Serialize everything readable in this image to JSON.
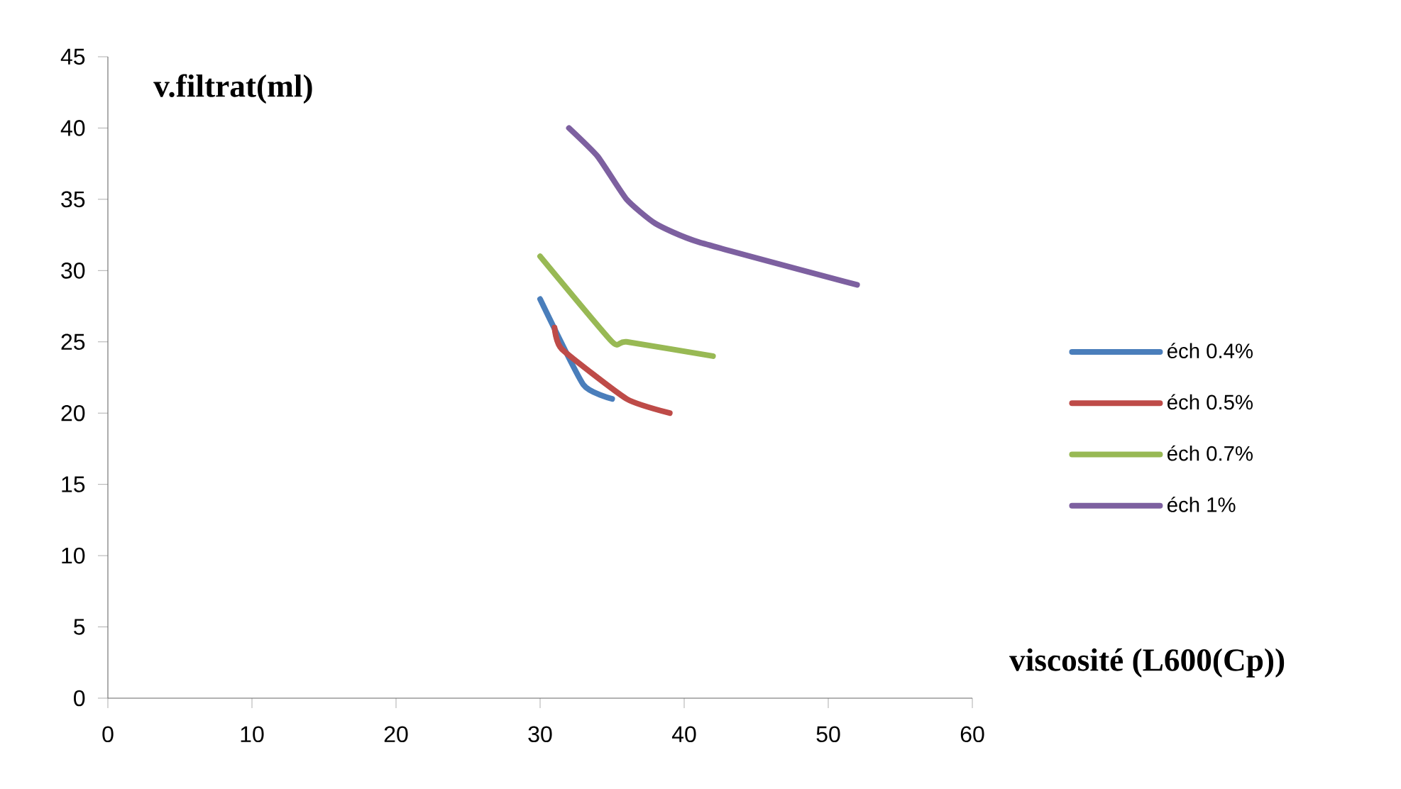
{
  "chart_data": {
    "type": "line",
    "xlabel": "viscosité (L600(Cp))",
    "ylabel": "v.filtrat(ml)",
    "xlim": [
      0,
      60
    ],
    "ylim": [
      0,
      45
    ],
    "xticks": [
      0,
      10,
      20,
      30,
      40,
      50,
      60
    ],
    "yticks": [
      0,
      5,
      10,
      15,
      20,
      25,
      30,
      35,
      40,
      45
    ],
    "legend": "right",
    "marker": "none",
    "line_style": "solid",
    "series": [
      {
        "name": "éch 0.4%",
        "color": "#4a7ebb",
        "x": [
          30,
          33,
          35
        ],
        "values": [
          28,
          22,
          21
        ]
      },
      {
        "name": "éch 0.5%",
        "color": "#be4b48",
        "x": [
          31,
          31.5,
          36,
          39
        ],
        "values": [
          26,
          24.5,
          21,
          20
        ]
      },
      {
        "name": "éch 0.7%",
        "color": "#98b954",
        "x": [
          30,
          35,
          36,
          42
        ],
        "values": [
          31,
          25,
          25,
          24
        ]
      },
      {
        "name": "éch 1%",
        "color": "#7d60a0",
        "x": [
          32,
          34,
          36,
          38,
          41,
          52
        ],
        "values": [
          40,
          38,
          35,
          33.3,
          32,
          29
        ]
      }
    ]
  }
}
